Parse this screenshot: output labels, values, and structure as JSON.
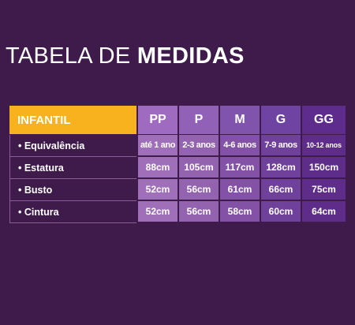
{
  "title": {
    "light": "TABELA DE",
    "bold": "MEDIDAS"
  },
  "table": {
    "category_label": "INFANTIL",
    "sizes": [
      "PP",
      "P",
      "M",
      "G",
      "GG"
    ],
    "size_colors": {
      "header": [
        "#9f6bc0",
        "#9160b7",
        "#8053ad",
        "#6f43a2",
        "#5d2c8c"
      ],
      "body": [
        "#a06fb9",
        "#9363b0",
        "#8352a6",
        "#70419b",
        "#5e2c89"
      ]
    },
    "rows": [
      {
        "label": "• Equivalência",
        "values": [
          "até 1 ano",
          "2-3 anos",
          "4-6 anos",
          "7-9 anos",
          "10-12 anos"
        ]
      },
      {
        "label": "• Estatura",
        "values": [
          "88cm",
          "105cm",
          "117cm",
          "128cm",
          "150cm"
        ]
      },
      {
        "label": "• Busto",
        "values": [
          "52cm",
          "56cm",
          "61cm",
          "66cm",
          "75cm"
        ]
      },
      {
        "label": "• Cintura",
        "values": [
          "52cm",
          "56cm",
          "58cm",
          "60cm",
          "64cm"
        ]
      }
    ]
  }
}
